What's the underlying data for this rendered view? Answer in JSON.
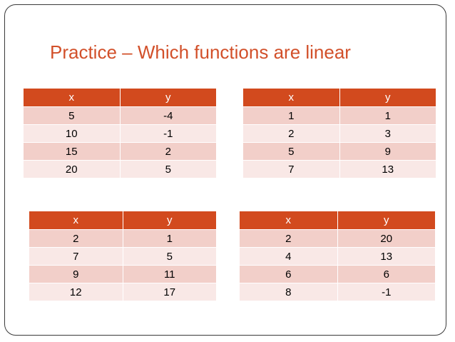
{
  "title": "Practice – Which functions are linear",
  "colors": {
    "header": "#d24a1e",
    "row_odd": "#f2cfc9",
    "row_even": "#f9e8e6",
    "title": "#d2502a"
  },
  "tables": [
    {
      "headers": [
        "x",
        "y"
      ],
      "rows": [
        [
          "5",
          "-4"
        ],
        [
          "10",
          "-1"
        ],
        [
          "15",
          "2"
        ],
        [
          "20",
          "5"
        ]
      ]
    },
    {
      "headers": [
        "x",
        "y"
      ],
      "rows": [
        [
          "1",
          "1"
        ],
        [
          "2",
          "3"
        ],
        [
          "5",
          "9"
        ],
        [
          "7",
          "13"
        ]
      ]
    },
    {
      "headers": [
        "x",
        "y"
      ],
      "rows": [
        [
          "2",
          "1"
        ],
        [
          "7",
          "5"
        ],
        [
          "9",
          "11"
        ],
        [
          "12",
          "17"
        ]
      ]
    },
    {
      "headers": [
        "x",
        "y"
      ],
      "rows": [
        [
          "2",
          "20"
        ],
        [
          "4",
          "13"
        ],
        [
          "6",
          "6"
        ],
        [
          "8",
          "-1"
        ]
      ]
    }
  ]
}
